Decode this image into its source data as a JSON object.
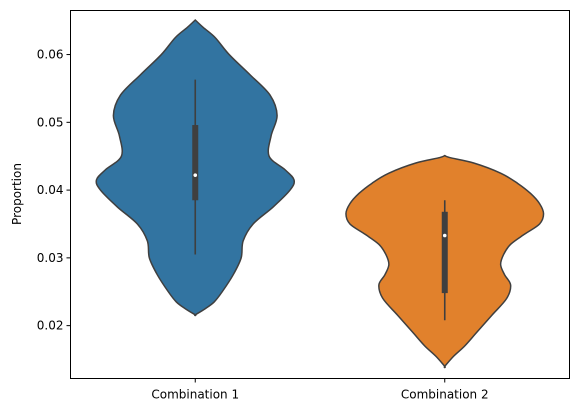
{
  "chart_data": {
    "type": "violin",
    "title": "",
    "xlabel": "",
    "ylabel": "Proportion",
    "ylim": [
      0.0122,
      0.0665
    ],
    "yticks": [
      0.02,
      0.03,
      0.04,
      0.05,
      0.06
    ],
    "ytick_labels": [
      "0.02",
      "0.03",
      "0.04",
      "0.05",
      "0.06"
    ],
    "grid": false,
    "legend": "none",
    "categories": [
      "Combination 1",
      "Combination 2"
    ],
    "series": [
      {
        "category": "Combination 1",
        "color": "#3274a1",
        "min": 0.0216,
        "max": 0.0651,
        "whisker_low": 0.0305,
        "q1": 0.0385,
        "median": 0.0422,
        "q3": 0.0496,
        "whisker_high": 0.0563,
        "density_profile": [
          [
            0.0651,
            0.0
          ],
          [
            0.064,
            0.08
          ],
          [
            0.0625,
            0.2
          ],
          [
            0.06,
            0.34
          ],
          [
            0.057,
            0.55
          ],
          [
            0.054,
            0.75
          ],
          [
            0.051,
            0.82
          ],
          [
            0.048,
            0.76
          ],
          [
            0.045,
            0.74
          ],
          [
            0.043,
            0.9
          ],
          [
            0.0415,
            0.99
          ],
          [
            0.04,
            0.95
          ],
          [
            0.0375,
            0.78
          ],
          [
            0.035,
            0.58
          ],
          [
            0.0325,
            0.48
          ],
          [
            0.03,
            0.46
          ],
          [
            0.0275,
            0.38
          ],
          [
            0.025,
            0.27
          ],
          [
            0.0235,
            0.19
          ],
          [
            0.0225,
            0.1
          ],
          [
            0.0216,
            0.0
          ]
        ]
      },
      {
        "category": "Combination 2",
        "color": "#e1812c",
        "min": 0.014,
        "max": 0.0451,
        "whisker_low": 0.0208,
        "q1": 0.0248,
        "median": 0.0333,
        "q3": 0.0368,
        "whisker_high": 0.0385,
        "density_profile": [
          [
            0.0451,
            0.0
          ],
          [
            0.0448,
            0.05
          ],
          [
            0.044,
            0.29
          ],
          [
            0.0425,
            0.56
          ],
          [
            0.041,
            0.73
          ],
          [
            0.0395,
            0.86
          ],
          [
            0.038,
            0.95
          ],
          [
            0.0365,
            0.99
          ],
          [
            0.035,
            0.95
          ],
          [
            0.0335,
            0.8
          ],
          [
            0.032,
            0.66
          ],
          [
            0.0305,
            0.59
          ],
          [
            0.029,
            0.56
          ],
          [
            0.0275,
            0.6
          ],
          [
            0.026,
            0.66
          ],
          [
            0.024,
            0.62
          ],
          [
            0.0215,
            0.47
          ],
          [
            0.019,
            0.32
          ],
          [
            0.017,
            0.2
          ],
          [
            0.0155,
            0.09
          ],
          [
            0.014,
            0.0
          ]
        ]
      }
    ],
    "line_color": "#3f3f3f",
    "box_color": "#3f3f3f",
    "median_color": "#ffffff"
  }
}
